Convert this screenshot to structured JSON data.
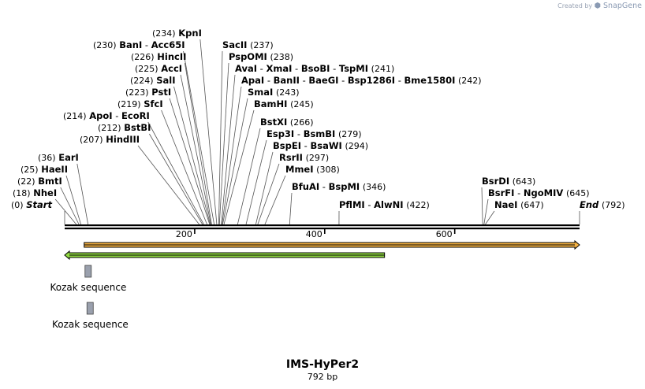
{
  "credit": {
    "prefix": "Created by",
    "brand": "SnapGene"
  },
  "construct": {
    "name": "IMS-HyPer2",
    "length_label": "792 bp",
    "length": 792
  },
  "ruler": {
    "ticks": [
      "200",
      "400",
      "600"
    ],
    "tick_values": [
      200,
      400,
      600
    ]
  },
  "sites": [
    {
      "id": "s0",
      "pos_label": "(0)",
      "pos": 0,
      "label_pos": "left",
      "parts": [
        {
          "name": "Start",
          "style": "italic"
        }
      ]
    },
    {
      "id": "s1",
      "pos_label": "(18)",
      "pos": 18,
      "label_pos": "left",
      "parts": [
        {
          "name": "NheI"
        }
      ]
    },
    {
      "id": "s2",
      "pos_label": "(22)",
      "pos": 22,
      "label_pos": "left",
      "parts": [
        {
          "name": "BmtI"
        }
      ]
    },
    {
      "id": "s3",
      "pos_label": "(25)",
      "pos": 25,
      "label_pos": "left",
      "parts": [
        {
          "name": "HaeII"
        }
      ]
    },
    {
      "id": "s4",
      "pos_label": "(36)",
      "pos": 36,
      "label_pos": "left",
      "parts": [
        {
          "name": "EarI"
        }
      ]
    },
    {
      "id": "s5",
      "pos_label": "(207)",
      "pos": 207,
      "label_pos": "left",
      "parts": [
        {
          "name": "HindIII"
        }
      ]
    },
    {
      "id": "s6",
      "pos_label": "(212)",
      "pos": 212,
      "label_pos": "left",
      "parts": [
        {
          "name": "BstBI"
        }
      ]
    },
    {
      "id": "s7",
      "pos_label": "(214)",
      "pos": 214,
      "label_pos": "left",
      "parts": [
        {
          "name": "ApoI"
        },
        {
          "name": "EcoRI"
        }
      ]
    },
    {
      "id": "s8",
      "pos_label": "(219)",
      "pos": 219,
      "label_pos": "left",
      "parts": [
        {
          "name": "SfcI"
        }
      ]
    },
    {
      "id": "s9",
      "pos_label": "(223)",
      "pos": 223,
      "label_pos": "left",
      "parts": [
        {
          "name": "PstI"
        }
      ]
    },
    {
      "id": "s10",
      "pos_label": "(224)",
      "pos": 224,
      "label_pos": "left",
      "parts": [
        {
          "name": "SalI"
        }
      ]
    },
    {
      "id": "s11",
      "pos_label": "(225)",
      "pos": 225,
      "label_pos": "left",
      "parts": [
        {
          "name": "AccI"
        }
      ]
    },
    {
      "id": "s12",
      "pos_label": "(226)",
      "pos": 226,
      "label_pos": "left",
      "parts": [
        {
          "name": "HincII"
        }
      ]
    },
    {
      "id": "s13",
      "pos_label": "(230)",
      "pos": 230,
      "label_pos": "left",
      "parts": [
        {
          "name": "BanI"
        },
        {
          "name": "Acc65I"
        }
      ]
    },
    {
      "id": "s14",
      "pos_label": "(234)",
      "pos": 234,
      "label_pos": "left",
      "parts": [
        {
          "name": "KpnI"
        }
      ]
    },
    {
      "id": "s15",
      "pos_label": "(237)",
      "pos": 237,
      "label_pos": "right",
      "parts": [
        {
          "name": "SacII"
        }
      ]
    },
    {
      "id": "s16",
      "pos_label": "(238)",
      "pos": 238,
      "label_pos": "right",
      "parts": [
        {
          "name": "PspOMI"
        }
      ]
    },
    {
      "id": "s17",
      "pos_label": "(241)",
      "pos": 241,
      "label_pos": "right",
      "parts": [
        {
          "name": "AvaI"
        },
        {
          "name": "XmaI"
        },
        {
          "name": "BsoBI"
        },
        {
          "name": "TspMI"
        }
      ]
    },
    {
      "id": "s18",
      "pos_label": "(242)",
      "pos": 242,
      "label_pos": "right",
      "parts": [
        {
          "name": "ApaI"
        },
        {
          "name": "BanII"
        },
        {
          "name": "BaeGI"
        },
        {
          "name": "Bsp1286I"
        },
        {
          "name": "Bme1580I"
        }
      ]
    },
    {
      "id": "s19",
      "pos_label": "(243)",
      "pos": 243,
      "label_pos": "right",
      "parts": [
        {
          "name": "SmaI"
        }
      ]
    },
    {
      "id": "s20",
      "pos_label": "(245)",
      "pos": 245,
      "label_pos": "right",
      "parts": [
        {
          "name": "BamHI"
        }
      ]
    },
    {
      "id": "s21",
      "pos_label": "(266)",
      "pos": 266,
      "label_pos": "right",
      "parts": [
        {
          "name": "BstXI"
        }
      ]
    },
    {
      "id": "s22",
      "pos_label": "(279)",
      "pos": 279,
      "label_pos": "right",
      "parts": [
        {
          "name": "Esp3I"
        },
        {
          "name": "BsmBI"
        }
      ]
    },
    {
      "id": "s23",
      "pos_label": "(294)",
      "pos": 294,
      "label_pos": "right",
      "parts": [
        {
          "name": "BspEI"
        },
        {
          "name": "BsaWI"
        }
      ]
    },
    {
      "id": "s24",
      "pos_label": "(297)",
      "pos": 297,
      "label_pos": "right",
      "parts": [
        {
          "name": "RsrII"
        }
      ]
    },
    {
      "id": "s25",
      "pos_label": "(308)",
      "pos": 308,
      "label_pos": "right",
      "parts": [
        {
          "name": "MmeI"
        }
      ]
    },
    {
      "id": "s26",
      "pos_label": "(346)",
      "pos": 346,
      "label_pos": "right",
      "parts": [
        {
          "name": "BfuAI"
        },
        {
          "name": "BspMI"
        }
      ]
    },
    {
      "id": "s27",
      "pos_label": "(422)",
      "pos": 422,
      "label_pos": "right",
      "parts": [
        {
          "name": "PflMI"
        },
        {
          "name": "AlwNI"
        }
      ]
    },
    {
      "id": "s28",
      "pos_label": "(643)",
      "pos": 643,
      "label_pos": "right",
      "parts": [
        {
          "name": "BsrDI"
        }
      ]
    },
    {
      "id": "s29",
      "pos_label": "(645)",
      "pos": 645,
      "label_pos": "right",
      "parts": [
        {
          "name": "BsrFI"
        },
        {
          "name": "NgoMIV"
        }
      ]
    },
    {
      "id": "s30",
      "pos_label": "(647)",
      "pos": 647,
      "label_pos": "right",
      "parts": [
        {
          "name": "NaeI"
        }
      ]
    },
    {
      "id": "s31",
      "pos_label": "(792)",
      "pos": 792,
      "label_pos": "right",
      "parts": [
        {
          "name": "End",
          "style": "italic"
        }
      ]
    }
  ],
  "features": [
    {
      "id": "f_orange",
      "type": "arrow",
      "direction": "forward",
      "start": 30,
      "end": 792,
      "color": "#f5a623",
      "label": ""
    },
    {
      "id": "f_green",
      "type": "arrow",
      "direction": "reverse",
      "start": 0,
      "end": 492,
      "color": "#7ed321",
      "label": ""
    },
    {
      "id": "f_kozak1",
      "type": "box",
      "start": 24,
      "end": 34,
      "color": "#9aa0ad",
      "label": "Kozak sequence"
    },
    {
      "id": "f_kozak2",
      "type": "box",
      "start": 27,
      "end": 37,
      "color": "#9aa0ad",
      "label": "Kozak sequence"
    }
  ],
  "colors": {
    "backbone": "#000000",
    "leader": "#555555",
    "credit": "#9aa4b5"
  }
}
